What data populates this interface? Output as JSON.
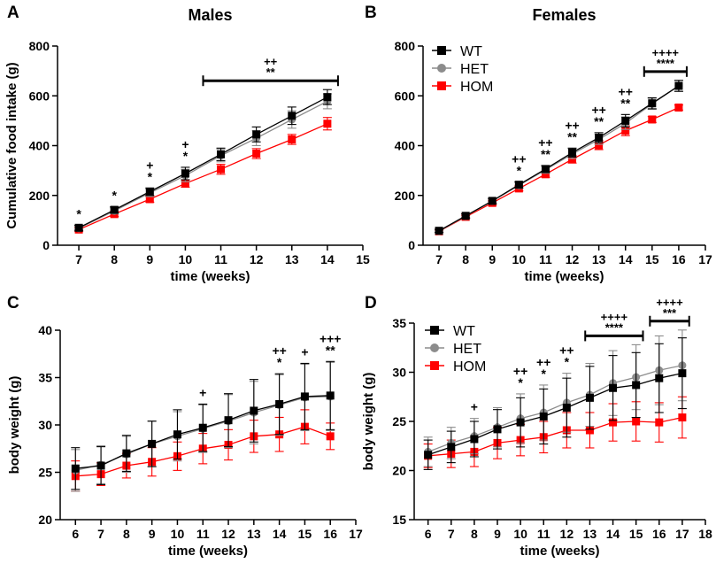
{
  "chart_data": [
    {
      "panel": "A",
      "type": "line",
      "title": "Males",
      "xlabel": "time (weeks)",
      "ylabel": "Cumulative food intake (g)",
      "xlim": [
        6.4,
        15
      ],
      "ylim": [
        0,
        800
      ],
      "xticks": [
        7,
        8,
        9,
        10,
        11,
        12,
        13,
        14,
        15
      ],
      "yticks": [
        0,
        200,
        400,
        600,
        800
      ],
      "legend": null,
      "series": [
        {
          "name": "WT",
          "color": "#000000",
          "marker": "square",
          "x": [
            7,
            8,
            9,
            10,
            11,
            12,
            13,
            14
          ],
          "y": [
            70,
            142,
            215,
            288,
            365,
            445,
            520,
            595
          ],
          "err": [
            10,
            12,
            15,
            25,
            25,
            30,
            35,
            30
          ]
        },
        {
          "name": "HET",
          "color": "#8c8c8c",
          "marker": "circle",
          "x": [
            7,
            8,
            9,
            10,
            11,
            12,
            13,
            14
          ],
          "y": [
            68,
            138,
            210,
            280,
            360,
            430,
            505,
            578
          ],
          "err": [
            10,
            12,
            15,
            25,
            25,
            30,
            35,
            30
          ]
        },
        {
          "name": "HOM",
          "color": "#ff0000",
          "marker": "square",
          "x": [
            7,
            8,
            9,
            10,
            11,
            12,
            13,
            14
          ],
          "y": [
            63,
            125,
            185,
            248,
            305,
            368,
            425,
            488
          ],
          "err": [
            8,
            10,
            12,
            15,
            20,
            20,
            20,
            25
          ]
        }
      ],
      "annotations": [
        {
          "x": 7,
          "lines": [
            "*"
          ]
        },
        {
          "x": 8,
          "lines": [
            "*"
          ]
        },
        {
          "x": 9,
          "lines": [
            "+",
            "*"
          ]
        },
        {
          "x": 10,
          "lines": [
            "+",
            "*"
          ]
        }
      ],
      "brackets": [
        {
          "from": 10.5,
          "to": 14.3,
          "lines": [
            "++",
            "**"
          ]
        }
      ]
    },
    {
      "panel": "B",
      "type": "line",
      "title": "Females",
      "xlabel": "time (weeks)",
      "ylabel": "",
      "xlim": [
        6.4,
        17
      ],
      "ylim": [
        0,
        800
      ],
      "xticks": [
        7,
        8,
        9,
        10,
        11,
        12,
        13,
        14,
        15,
        16,
        17
      ],
      "yticks": [
        0,
        200,
        400,
        600,
        800
      ],
      "legend": [
        "WT",
        "HET",
        "HOM"
      ],
      "series": [
        {
          "name": "WT",
          "color": "#000000",
          "marker": "square",
          "x": [
            7,
            8,
            9,
            10,
            11,
            12,
            13,
            14,
            15,
            16
          ],
          "y": [
            58,
            118,
            178,
            243,
            306,
            372,
            432,
            500,
            570,
            640
          ],
          "err": [
            6,
            8,
            10,
            12,
            14,
            18,
            20,
            25,
            22,
            22
          ]
        },
        {
          "name": "HET",
          "color": "#8c8c8c",
          "marker": "circle",
          "x": [
            7,
            8,
            9,
            10,
            11,
            12,
            13,
            14,
            15,
            16
          ],
          "y": [
            57,
            117,
            177,
            240,
            303,
            366,
            425,
            490,
            568,
            640
          ],
          "err": [
            6,
            8,
            10,
            12,
            14,
            18,
            20,
            25,
            22,
            22
          ]
        },
        {
          "name": "HOM",
          "color": "#ff0000",
          "marker": "square",
          "x": [
            7,
            8,
            9,
            10,
            11,
            12,
            13,
            14,
            15,
            16
          ],
          "y": [
            56,
            114,
            170,
            228,
            285,
            345,
            402,
            460,
            505,
            553
          ],
          "err": [
            5,
            6,
            8,
            10,
            12,
            15,
            18,
            20,
            12,
            10
          ]
        }
      ],
      "annotations": [
        {
          "x": 10,
          "lines": [
            "++",
            "*"
          ]
        },
        {
          "x": 11,
          "lines": [
            "++",
            "**"
          ]
        },
        {
          "x": 12,
          "lines": [
            "++",
            "**"
          ]
        },
        {
          "x": 13,
          "lines": [
            "++",
            "**"
          ]
        },
        {
          "x": 14,
          "lines": [
            "++",
            "**"
          ]
        }
      ],
      "brackets": [
        {
          "from": 14.7,
          "to": 16.3,
          "lines": [
            "++++",
            "****"
          ]
        }
      ]
    },
    {
      "panel": "C",
      "type": "line",
      "title": "",
      "xlabel": "time (weeks)",
      "ylabel": "body weight (g)",
      "xlim": [
        5.4,
        17
      ],
      "ylim": [
        20,
        40
      ],
      "xticks": [
        6,
        7,
        8,
        9,
        10,
        11,
        12,
        13,
        14,
        15,
        16,
        17
      ],
      "yticks": [
        20,
        25,
        30,
        35,
        40
      ],
      "legend": null,
      "series": [
        {
          "name": "WT",
          "color": "#000000",
          "marker": "square",
          "x": [
            6,
            7,
            8,
            9,
            10,
            11,
            12,
            13,
            14,
            15,
            16
          ],
          "y": [
            25.4,
            25.7,
            27.0,
            28.0,
            29.0,
            29.7,
            30.5,
            31.5,
            32.2,
            33.0,
            33.1
          ],
          "err": [
            2.2,
            2.0,
            1.9,
            2.4,
            2.6,
            2.5,
            2.8,
            3.3,
            3.2,
            3.5,
            3.6
          ]
        },
        {
          "name": "HET",
          "color": "#8c8c8c",
          "marker": "circle",
          "x": [
            6,
            7,
            8,
            9,
            10,
            11,
            12,
            13,
            14,
            15,
            16
          ],
          "y": [
            25.2,
            25.8,
            26.9,
            28.0,
            28.8,
            29.6,
            30.4,
            31.3,
            32.1,
            32.9,
            33.0
          ],
          "err": [
            2.2,
            2.0,
            1.9,
            2.4,
            2.6,
            2.5,
            2.8,
            3.3,
            3.2,
            3.5,
            3.6
          ]
        },
        {
          "name": "HOM",
          "color": "#ff0000",
          "marker": "square",
          "x": [
            6,
            7,
            8,
            9,
            10,
            11,
            12,
            13,
            14,
            15,
            16
          ],
          "y": [
            24.6,
            24.8,
            25.7,
            26.1,
            26.7,
            27.5,
            27.9,
            28.8,
            29.0,
            29.8,
            28.8
          ],
          "err": [
            1.6,
            1.2,
            1.3,
            1.5,
            1.5,
            1.6,
            1.6,
            1.7,
            1.8,
            1.8,
            1.4
          ]
        }
      ],
      "annotations": [
        {
          "x": 11,
          "lines": [
            "+"
          ]
        },
        {
          "x": 14,
          "lines": [
            "++",
            "*"
          ]
        },
        {
          "x": 15,
          "lines": [
            "+"
          ]
        },
        {
          "x": 16,
          "lines": [
            "+++",
            "**"
          ]
        }
      ],
      "brackets": []
    },
    {
      "panel": "D",
      "type": "line",
      "title": "",
      "xlabel": "time (weeks)",
      "ylabel": "body weight (g)",
      "xlim": [
        5.4,
        18
      ],
      "ylim": [
        15,
        35
      ],
      "xticks": [
        6,
        7,
        8,
        9,
        10,
        11,
        12,
        13,
        14,
        15,
        16,
        17,
        18
      ],
      "yticks": [
        15,
        20,
        25,
        30,
        35
      ],
      "legend": [
        "WT",
        "HET",
        "HOM"
      ],
      "series": [
        {
          "name": "WT",
          "color": "#000000",
          "marker": "square",
          "x": [
            6,
            7,
            8,
            9,
            10,
            11,
            12,
            13,
            14,
            15,
            16,
            17
          ],
          "y": [
            21.6,
            22.4,
            23.2,
            24.2,
            24.9,
            25.5,
            26.4,
            27.4,
            28.4,
            28.7,
            29.4,
            29.9
          ],
          "err": [
            1.5,
            1.6,
            1.8,
            2.0,
            2.5,
            2.8,
            3.0,
            3.2,
            3.3,
            3.3,
            3.5,
            3.6
          ]
        },
        {
          "name": "HET",
          "color": "#8c8c8c",
          "marker": "circle",
          "x": [
            6,
            7,
            8,
            9,
            10,
            11,
            12,
            13,
            14,
            15,
            16,
            17
          ],
          "y": [
            21.9,
            22.8,
            23.5,
            24.4,
            25.3,
            25.9,
            26.9,
            27.7,
            28.9,
            29.5,
            30.2,
            30.7
          ],
          "err": [
            1.5,
            1.6,
            1.8,
            2.0,
            2.5,
            2.8,
            3.0,
            3.2,
            3.3,
            3.3,
            3.5,
            3.6
          ]
        },
        {
          "name": "HOM",
          "color": "#ff0000",
          "marker": "square",
          "x": [
            6,
            7,
            8,
            9,
            10,
            11,
            12,
            13,
            14,
            15,
            16,
            17
          ],
          "y": [
            21.5,
            21.7,
            21.9,
            22.8,
            23.1,
            23.4,
            24.1,
            24.1,
            24.9,
            25.0,
            24.9,
            25.4
          ],
          "err": [
            1.2,
            1.4,
            1.5,
            1.6,
            1.6,
            1.6,
            1.8,
            1.8,
            1.9,
            2.0,
            2.0,
            2.1
          ]
        }
      ],
      "annotations": [
        {
          "x": 8,
          "lines": [
            "+"
          ]
        },
        {
          "x": 10,
          "lines": [
            "++",
            "*"
          ]
        },
        {
          "x": 11,
          "lines": [
            "++",
            "*"
          ]
        },
        {
          "x": 12,
          "lines": [
            "++",
            "*"
          ]
        }
      ],
      "brackets": [
        {
          "from": 12.8,
          "to": 15.3,
          "lines": [
            "++++",
            "****"
          ]
        },
        {
          "from": 15.6,
          "to": 17.3,
          "lines": [
            "++++",
            "***"
          ]
        }
      ]
    }
  ]
}
